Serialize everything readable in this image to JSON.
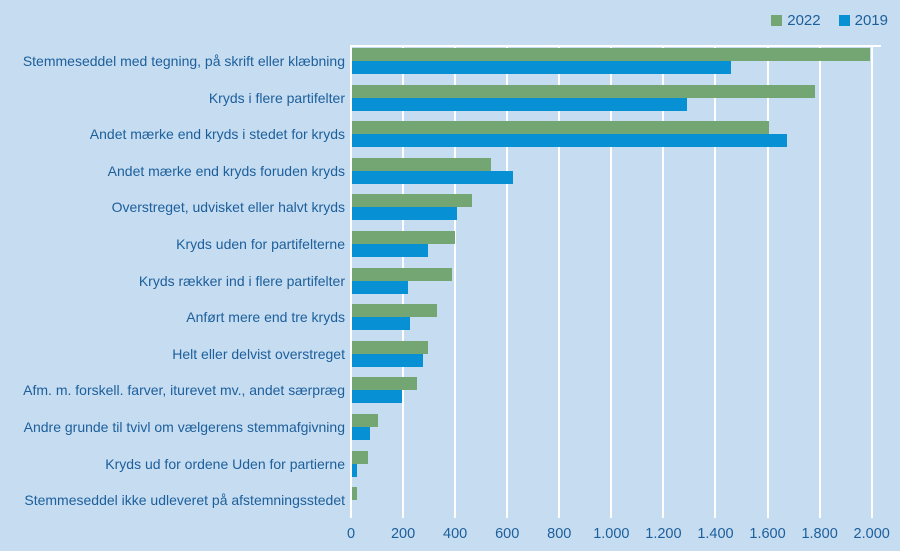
{
  "legend": {
    "items": [
      {
        "label": "2022",
        "color": "#73a673"
      },
      {
        "label": "2019",
        "color": "#0791d4"
      }
    ],
    "position": "top-right"
  },
  "colors": {
    "background": "#c6dcf1",
    "gridline": "#ffffff",
    "text": "#1c5f9b",
    "series_2022": "#73a673",
    "series_2019": "#0791d4"
  },
  "chart_data": {
    "type": "bar",
    "orientation": "horizontal",
    "title": "",
    "xlabel": "",
    "ylabel": "",
    "xlim": [
      0,
      2000
    ],
    "grid": true,
    "legend_position": "top-right",
    "xtick_labels": [
      "0",
      "200",
      "400",
      "600",
      "800",
      "1.000",
      "1.200",
      "1.400",
      "1.600",
      "1.800",
      "2.000"
    ],
    "xtick_values": [
      0,
      200,
      400,
      600,
      800,
      1000,
      1200,
      1400,
      1600,
      1800,
      2000
    ],
    "categories": [
      "Stemmeseddel med tegning, på skrift eller klæbning",
      "Kryds i flere partifelter",
      "Andet mærke end kryds i stedet for kryds",
      "Andet mærke end kryds foruden kryds",
      "Overstreget, udvisket eller halvt kryds",
      "Kryds uden for partifelterne",
      "Kryds rækker ind i flere partifelter",
      "Anført mere end tre kryds",
      "Helt eller delvist overstreget",
      "Afm. m. forskell. farver, iturevet mv., andet særpræg",
      "Andre grunde til tvivl om vælgerens stemmafgivning",
      "Kryds ud for ordene Uden for partierne",
      "Stemmeseddel ikke udleveret på afstemningsstedet"
    ],
    "series": [
      {
        "name": "2022",
        "color": "#73a673",
        "values": [
          1990,
          1780,
          1600,
          535,
          460,
          395,
          385,
          325,
          293,
          250,
          100,
          60,
          20
        ]
      },
      {
        "name": "2019",
        "color": "#0791d4",
        "values": [
          1455,
          1285,
          1670,
          620,
          405,
          290,
          215,
          222,
          272,
          192,
          68,
          20,
          0
        ]
      }
    ]
  }
}
